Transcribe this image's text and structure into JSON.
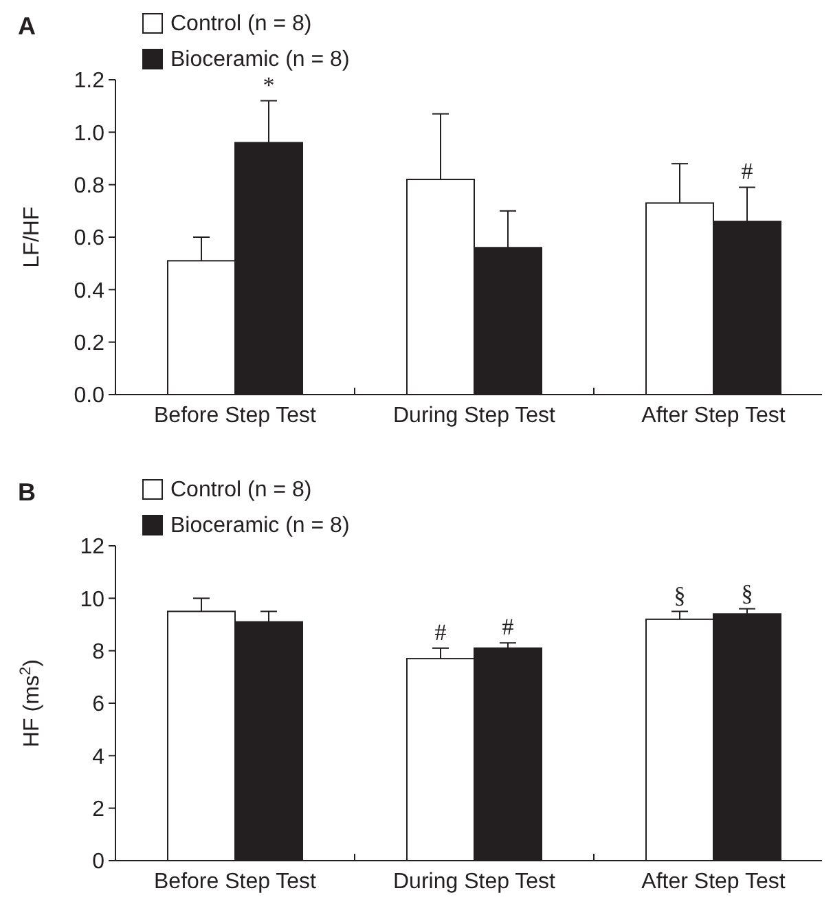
{
  "chart_data": [
    {
      "type": "bar",
      "title": "A",
      "ylabel": "LF/HF",
      "categories": [
        "Before Step Test",
        "During Step Test",
        "After Step Test"
      ],
      "series": [
        {
          "name": "Control (n = 8)",
          "color": "#ffffff",
          "values": [
            0.51,
            0.82,
            0.73
          ],
          "errors": [
            [
              0.51,
              0.6
            ],
            [
              0.82,
              1.07
            ],
            [
              0.73,
              0.88
            ]
          ]
        },
        {
          "name": "Bioceramic (n = 8)",
          "color": "#231f20",
          "values": [
            0.96,
            0.56,
            0.66
          ],
          "errors": [
            [
              0.96,
              1.12
            ],
            [
              0.56,
              0.7
            ],
            [
              0.66,
              0.79
            ]
          ]
        }
      ],
      "ylim": [
        0,
        1.2
      ],
      "yticks": [
        {
          "value": 0,
          "label": "0.0"
        },
        0.2,
        0.4,
        0.6,
        0.8,
        {
          "value": 1,
          "label": "1.0"
        },
        1.2
      ],
      "grid": false,
      "legend": "top left",
      "annotations": [
        {
          "text": "*",
          "x": "Before Step Test",
          "y": 0.96
        },
        {
          "text": "#",
          "x": "After Step Test",
          "y": 0.66
        }
      ]
    },
    {
      "type": "bar",
      "title": "B",
      "ylabel": "HF (ms$^{2}$)",
      "categories": [
        "Before Step Test",
        "During Step Test",
        "After Step Test"
      ],
      "series": [
        {
          "name": "Control (n = 8)",
          "color": "#ffffff",
          "values": [
            9.5,
            7.7,
            9.2
          ],
          "errors": [
            [
              9.5,
              10
            ],
            [
              7.7,
              8.1
            ],
            [
              9.2,
              9.5
            ]
          ]
        },
        {
          "name": "Bioceramic (n = 8)",
          "color": "#231f20",
          "values": [
            9.1,
            8.1,
            9.4
          ],
          "errors": [
            [
              9.1,
              9.5
            ],
            [
              8.1,
              8.3
            ],
            [
              9.4,
              9.6
            ]
          ]
        }
      ],
      "ylim": [
        0,
        12
      ],
      "yticks": [
        0,
        2,
        4,
        6,
        8,
        10,
        12
      ],
      "grid": false,
      "legend": "top left",
      "annotations": [
        {
          "text": "#",
          "x": "During Step Test",
          "y": 7.7
        },
        {
          "text": "#",
          "x": "During Step Test",
          "y": 8.1
        },
        {
          "text": "§",
          "x": "After Step Test",
          "y": 9.2
        },
        {
          "text": "§",
          "x": "After Step Test",
          "y": 9.4
        }
      ]
    }
  ]
}
